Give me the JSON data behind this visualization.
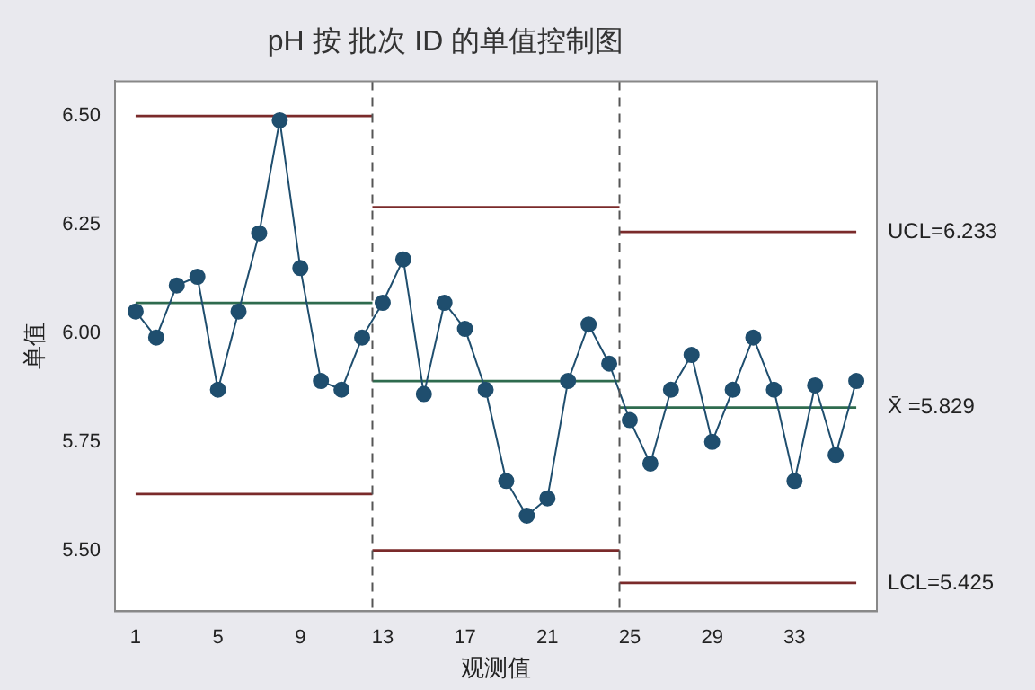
{
  "chart_data": {
    "type": "line",
    "title": "pH 按 批次 ID 的单值控制图",
    "xlabel": "观测值",
    "ylabel": "单值",
    "xlim": [
      0,
      37
    ],
    "xticks": [
      1,
      5,
      9,
      13,
      17,
      21,
      25,
      29,
      33
    ],
    "ylim": [
      5.36,
      6.58
    ],
    "yticks": [
      {
        "value": 5.5,
        "label": "5.50"
      },
      {
        "value": 5.75,
        "label": "5.75"
      },
      {
        "value": 6.0,
        "label": "6.00"
      },
      {
        "value": 6.25,
        "label": "6.25"
      },
      {
        "value": 6.5,
        "label": "6.50"
      }
    ],
    "grid": false,
    "legend": false,
    "series": [
      {
        "color": "#1f4e6e",
        "marker": "circle",
        "x": [
          1,
          2,
          3,
          4,
          5,
          6,
          7,
          8,
          9,
          10,
          11,
          12,
          13,
          14,
          15,
          16,
          17,
          18,
          19,
          20,
          21,
          22,
          23,
          24,
          25,
          26,
          27,
          28,
          29,
          30,
          31,
          32,
          33,
          34,
          35,
          36
        ],
        "values": [
          6.05,
          5.99,
          6.11,
          6.13,
          5.87,
          6.05,
          6.23,
          6.49,
          6.15,
          5.89,
          5.87,
          5.99,
          6.07,
          6.17,
          5.86,
          6.07,
          6.01,
          5.87,
          5.66,
          5.58,
          5.62,
          5.89,
          6.02,
          5.93,
          5.8,
          5.7,
          5.87,
          5.95,
          5.75,
          5.87,
          5.99,
          5.87,
          5.66,
          5.88,
          5.72,
          5.89
        ]
      },
      {
        "color": "#7a2a2a",
        "marker": "none",
        "x": [
          1,
          12.5
        ],
        "values": [
          6.5,
          6.5
        ]
      },
      {
        "color": "#2e6b4e",
        "marker": "none",
        "x": [
          1,
          12.5
        ],
        "values": [
          6.07,
          6.07
        ]
      },
      {
        "color": "#7a2a2a",
        "marker": "none",
        "x": [
          1,
          12.5
        ],
        "values": [
          5.63,
          5.63
        ]
      },
      {
        "color": "#7a2a2a",
        "marker": "none",
        "x": [
          12.5,
          24.5
        ],
        "values": [
          6.29,
          6.29
        ]
      },
      {
        "color": "#2e6b4e",
        "marker": "none",
        "x": [
          12.5,
          24.5
        ],
        "values": [
          5.89,
          5.89
        ]
      },
      {
        "color": "#7a2a2a",
        "marker": "none",
        "x": [
          12.5,
          24.5
        ],
        "values": [
          5.5,
          5.5
        ]
      },
      {
        "name": "UCL=6.233",
        "color": "#7a2a2a",
        "marker": "none",
        "x": [
          24.5,
          36
        ],
        "values": [
          6.233,
          6.233
        ]
      },
      {
        "name": "X̄ =5.829",
        "color": "#2e6b4e",
        "marker": "none",
        "x": [
          24.5,
          36
        ],
        "values": [
          5.829,
          5.829
        ]
      },
      {
        "name": "LCL=5.425",
        "color": "#7a2a2a",
        "marker": "none",
        "x": [
          24.5,
          36
        ],
        "values": [
          5.425,
          5.425
        ]
      }
    ],
    "ref_lines": [
      {
        "axis": "x",
        "value": 12.5,
        "color": "#555555",
        "line_style": "dashed"
      },
      {
        "axis": "x",
        "value": 24.5,
        "color": "#555555",
        "line_style": "dashed"
      }
    ]
  }
}
